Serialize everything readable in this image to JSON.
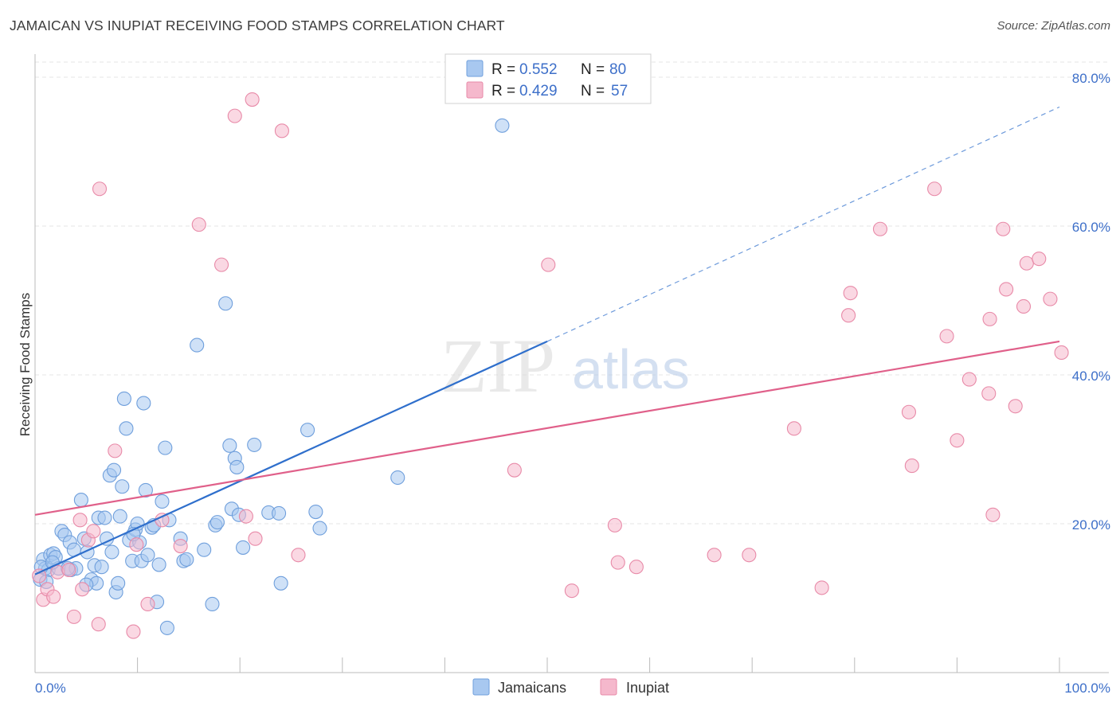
{
  "header": {
    "title": "JAMAICAN VS INUPIAT RECEIVING FOOD STAMPS CORRELATION CHART",
    "source": "Source: ZipAtlas.com"
  },
  "watermark": {
    "zip": "ZIP",
    "atlas": "atlas"
  },
  "legend": {
    "r_label": "R =",
    "n_label": "N =",
    "rows": [
      {
        "r": "0.552",
        "n": "80",
        "color": "#a8c8f0"
      },
      {
        "r": "0.429",
        "n": "57",
        "color": "#f5b8cc"
      }
    ]
  },
  "bottom_legend": [
    {
      "label": "Jamaicans",
      "color": "#a8c8f0"
    },
    {
      "label": "Inupiat",
      "color": "#f5b8cc"
    }
  ],
  "chart_data": {
    "type": "scatter",
    "title": "JAMAICAN VS INUPIAT RECEIVING FOOD STAMPS CORRELATION CHART",
    "xlabel": "",
    "ylabel": "Receiving Food Stamps",
    "xlim": [
      0,
      100
    ],
    "ylim": [
      0,
      80
    ],
    "x_tick_labels": [
      "0.0%",
      "100.0%"
    ],
    "y_ticks": [
      20,
      40,
      60,
      80
    ],
    "y_tick_labels": [
      "20.0%",
      "40.0%",
      "60.0%",
      "80.0%"
    ],
    "grid": true,
    "legend_position": "top-center",
    "colors": {
      "jamaicans_fill": "#a8c8f0",
      "jamaicans_stroke": "#6f9fdc",
      "jamaicans_line": "#2f6fcc",
      "inupiat_fill": "#f5b8cc",
      "inupiat_stroke": "#e88aa8",
      "inupiat_line": "#e0608a"
    },
    "series": [
      {
        "name": "Jamaicans",
        "r": 0.552,
        "n": 80,
        "trend": {
          "x0": 0,
          "y0": 13.2,
          "x1": 50,
          "y1": 44.5,
          "dash_to_x": 100,
          "dash_to_y": 76.0
        },
        "points": [
          [
            0.5,
            12.5
          ],
          [
            0.8,
            15.2
          ],
          [
            1.0,
            14.0
          ],
          [
            1.3,
            13.8
          ],
          [
            1.5,
            15.8
          ],
          [
            1.8,
            16.0
          ],
          [
            2.0,
            15.5
          ],
          [
            2.3,
            14.0
          ],
          [
            2.6,
            19.0
          ],
          [
            2.9,
            18.5
          ],
          [
            3.4,
            17.5
          ],
          [
            3.8,
            16.5
          ],
          [
            3.5,
            13.8
          ],
          [
            4.0,
            14.0
          ],
          [
            4.5,
            23.2
          ],
          [
            4.8,
            18.0
          ],
          [
            5.1,
            16.2
          ],
          [
            5.5,
            12.5
          ],
          [
            5.8,
            14.4
          ],
          [
            6.0,
            12.0
          ],
          [
            6.2,
            20.8
          ],
          [
            6.5,
            14.2
          ],
          [
            6.8,
            20.8
          ],
          [
            7.0,
            18.0
          ],
          [
            7.3,
            26.5
          ],
          [
            7.5,
            16.2
          ],
          [
            7.7,
            27.2
          ],
          [
            7.9,
            10.8
          ],
          [
            8.1,
            12.0
          ],
          [
            8.3,
            21.0
          ],
          [
            8.5,
            25.0
          ],
          [
            8.7,
            36.8
          ],
          [
            8.9,
            32.8
          ],
          [
            9.2,
            17.8
          ],
          [
            9.5,
            15.0
          ],
          [
            9.8,
            19.2
          ],
          [
            10.0,
            20.0
          ],
          [
            10.2,
            17.5
          ],
          [
            10.4,
            15.0
          ],
          [
            10.6,
            36.2
          ],
          [
            10.8,
            24.5
          ],
          [
            11.0,
            15.8
          ],
          [
            11.4,
            19.5
          ],
          [
            11.6,
            19.8
          ],
          [
            11.9,
            9.5
          ],
          [
            12.1,
            14.5
          ],
          [
            12.4,
            23.0
          ],
          [
            12.7,
            30.2
          ],
          [
            12.9,
            6.0
          ],
          [
            13.1,
            20.5
          ],
          [
            14.2,
            18.0
          ],
          [
            14.5,
            15.0
          ],
          [
            14.8,
            15.2
          ],
          [
            15.8,
            44.0
          ],
          [
            16.5,
            16.5
          ],
          [
            17.3,
            9.2
          ],
          [
            17.6,
            19.8
          ],
          [
            17.8,
            20.2
          ],
          [
            18.6,
            49.6
          ],
          [
            19.0,
            30.5
          ],
          [
            19.2,
            22.0
          ],
          [
            19.5,
            28.8
          ],
          [
            19.7,
            27.6
          ],
          [
            19.9,
            21.2
          ],
          [
            20.3,
            16.8
          ],
          [
            21.4,
            30.6
          ],
          [
            22.8,
            21.5
          ],
          [
            23.8,
            21.4
          ],
          [
            24.0,
            12.0
          ],
          [
            26.6,
            32.6
          ],
          [
            27.4,
            21.6
          ],
          [
            27.8,
            19.4
          ],
          [
            35.4,
            26.2
          ],
          [
            45.6,
            73.5
          ],
          [
            0.6,
            14.2
          ],
          [
            1.1,
            12.2
          ],
          [
            1.7,
            14.8
          ],
          [
            3.2,
            14.0
          ],
          [
            5.0,
            11.8
          ],
          [
            9.6,
            18.6
          ]
        ]
      },
      {
        "name": "Inupiat",
        "r": 0.429,
        "n": 57,
        "trend": {
          "x0": 0,
          "y0": 21.2,
          "x1": 100,
          "y1": 44.5
        },
        "points": [
          [
            0.4,
            13.0
          ],
          [
            0.8,
            9.8
          ],
          [
            1.2,
            11.2
          ],
          [
            1.8,
            10.2
          ],
          [
            2.2,
            13.5
          ],
          [
            3.3,
            13.8
          ],
          [
            3.8,
            7.5
          ],
          [
            4.4,
            20.5
          ],
          [
            4.6,
            11.2
          ],
          [
            5.2,
            17.8
          ],
          [
            5.7,
            19.0
          ],
          [
            6.2,
            6.5
          ],
          [
            6.3,
            65.0
          ],
          [
            7.8,
            29.8
          ],
          [
            9.6,
            5.5
          ],
          [
            9.9,
            17.2
          ],
          [
            11.0,
            9.2
          ],
          [
            12.4,
            20.5
          ],
          [
            14.2,
            17.0
          ],
          [
            16.0,
            60.2
          ],
          [
            18.2,
            54.8
          ],
          [
            19.5,
            74.8
          ],
          [
            20.6,
            21.0
          ],
          [
            21.2,
            77.0
          ],
          [
            21.5,
            18.0
          ],
          [
            24.1,
            72.8
          ],
          [
            25.7,
            15.8
          ],
          [
            46.8,
            27.2
          ],
          [
            50.1,
            54.8
          ],
          [
            52.4,
            11.0
          ],
          [
            56.6,
            19.8
          ],
          [
            56.9,
            14.8
          ],
          [
            58.7,
            14.2
          ],
          [
            66.3,
            15.8
          ],
          [
            69.7,
            15.8
          ],
          [
            74.1,
            32.8
          ],
          [
            76.8,
            11.4
          ],
          [
            79.4,
            48.0
          ],
          [
            79.6,
            51.0
          ],
          [
            82.5,
            59.6
          ],
          [
            85.3,
            35.0
          ],
          [
            85.6,
            27.8
          ],
          [
            87.8,
            65.0
          ],
          [
            89.0,
            45.2
          ],
          [
            90.0,
            31.2
          ],
          [
            91.2,
            39.4
          ],
          [
            93.1,
            37.5
          ],
          [
            93.2,
            47.5
          ],
          [
            93.5,
            21.2
          ],
          [
            94.5,
            59.6
          ],
          [
            94.8,
            51.5
          ],
          [
            95.7,
            35.8
          ],
          [
            96.5,
            49.2
          ],
          [
            96.8,
            55.0
          ],
          [
            98.0,
            55.6
          ],
          [
            99.1,
            50.2
          ],
          [
            100.2,
            43.0
          ]
        ]
      }
    ]
  }
}
